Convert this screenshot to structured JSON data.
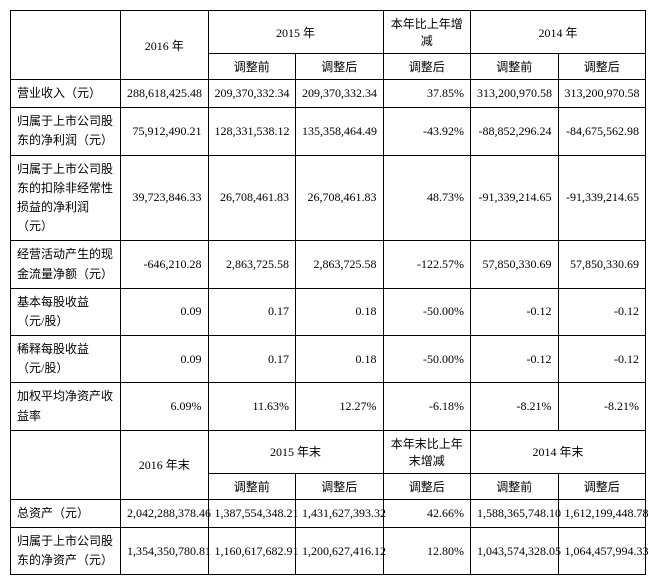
{
  "headers": {
    "blank": "",
    "y2016": "2016 年",
    "y2015": "2015 年",
    "change_col": "本年比上年增减",
    "y2014": "2014 年",
    "pre_adj": "调整前",
    "post_adj": "调整后",
    "y2016_end": "2016 年末",
    "y2015_end": "2015 年末",
    "change_end_col": "本年末比上年末增减",
    "y2014_end": "2014 年末"
  },
  "rows": {
    "r1": {
      "label": "营业收入（元）",
      "c1": "28,861,8425.48",
      "c2": "20,937,0332.34",
      "c3": "20,937,0332.34",
      "c4": "37.85%",
      "c5": "31,320,0970.58",
      "c6": "31,320,0970.58"
    },
    "r2": {
      "label": "归属于上市公司股东的净利润（元）",
      "c1": "7,591,2490.21",
      "c2": "12,833,1538.12",
      "c3": "13,535,8464.49",
      "c4": "-43.92%",
      "c5": "-8,885,2296.24",
      "c6": "-8,467,5562.98"
    },
    "r3": {
      "label": "归属于上市公司股东的扣除非经常性损益的净利润（元）",
      "c1": "3,972,3846.33",
      "c2": "2,670,8461.83",
      "c3": "2,670,8461.83",
      "c4": "48.73%",
      "c5": "-9,133,9214.65",
      "c6": "-9,133,9214.65"
    },
    "r4": {
      "label": "经营活动产生的现金流量净额（元）",
      "c1": "-64,6210.28",
      "c2": "2,863,725.58",
      "c3": "2,863,725.58",
      "c4": "-122.57%",
      "c5": "5,785,0330.69",
      "c6": "5,785,0330.69"
    },
    "r5": {
      "label": "基本每股收益（元/股）",
      "c1": "0.09",
      "c2": "0.17",
      "c3": "0.18",
      "c4": "-50.00%",
      "c5": "-0.12",
      "c6": "-0.12"
    },
    "r6": {
      "label": "稀释每股收益（元/股）",
      "c1": "0.09",
      "c2": "0.17",
      "c3": "0.18",
      "c4": "-50.00%",
      "c5": "-0.12",
      "c6": "-0.12"
    },
    "r7": {
      "label": "加权平均净资产收益率",
      "c1": "6.09%",
      "c2": "11.63%",
      "c3": "12.27%",
      "c4": "-6.18%",
      "c5": "-8.21%",
      "c6": "-8.21%"
    },
    "r8": {
      "label": "总资产（元）",
      "c1": "2,042,288,378.46",
      "c2": "1,387,554,348.21",
      "c3": "1,431,627,393.32",
      "c4": "42.66%",
      "c5": "1,588,365,748.10",
      "c6": "1,612,199,448.78"
    },
    "r9": {
      "label": "归属于上市公司股东的净资产（元）",
      "c1": "1,354,350,780.81",
      "c2": "1,160,617,682.91",
      "c3": "1,200,627,416.12",
      "c4": "12.80%",
      "c5": "1,043,574,328.05",
      "c6": "1,064,457,994.33"
    }
  },
  "display": {
    "r1": {
      "c1": "288,618,425.48",
      "c2": "209,370,332.34",
      "c3": "209,370,332.34",
      "c4": "37.85%",
      "c5": "313,200,970.58",
      "c6": "313,200,970.58"
    },
    "r2": {
      "c1": "75,912,490.21",
      "c2": "128,331,538.12",
      "c3": "135,358,464.49",
      "c4": "-43.92%",
      "c5": "-88,852,296.24",
      "c6": "-84,675,562.98"
    },
    "r3": {
      "c1": "39,723,846.33",
      "c2": "26,708,461.83",
      "c3": "26,708,461.83",
      "c4": "48.73%",
      "c5": "-91,339,214.65",
      "c6": "-91,339,214.65"
    },
    "r4": {
      "c1": "-646,210.28",
      "c2": "2,863,725.58",
      "c3": "2,863,725.58",
      "c4": "-122.57%",
      "c5": "57,850,330.69",
      "c6": "57,850,330.69"
    },
    "r5": {
      "c1": "0.09",
      "c2": "0.17",
      "c3": "0.18",
      "c4": "-50.00%",
      "c5": "-0.12",
      "c6": "-0.12"
    },
    "r6": {
      "c1": "0.09",
      "c2": "0.17",
      "c3": "0.18",
      "c4": "-50.00%",
      "c5": "-0.12",
      "c6": "-0.12"
    },
    "r7": {
      "c1": "6.09%",
      "c2": "11.63%",
      "c3": "12.27%",
      "c4": "-6.18%",
      "c5": "-8.21%",
      "c6": "-8.21%"
    },
    "r8": {
      "c1": "2,042,288,378.46",
      "c2": "1,387,554,348.21",
      "c3": "1,431,627,393.32",
      "c4": "42.66%",
      "c5": "1,588,365,748.10",
      "c6": "1,612,199,448.78"
    },
    "r9": {
      "c1": "1,354,350,780.81",
      "c2": "1,160,617,682.91",
      "c3": "1,200,627,416.12",
      "c4": "12.80%",
      "c5": "1,043,574,328.05",
      "c6": "1,064,457,994.33"
    }
  }
}
